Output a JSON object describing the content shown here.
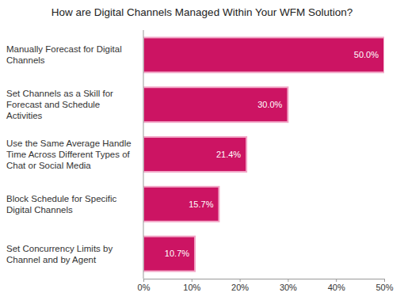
{
  "chart_data": {
    "type": "bar",
    "orientation": "horizontal",
    "title": "How are Digital Channels Managed Within Your WFM Solution?",
    "categories": [
      "Manually Forecast for Digital Channels",
      "Set Channels as a Skill for Forecast and Schedule Activities",
      "Use the Same Average Handle Time Across Different Types of Chat or Social Media",
      "Block Schedule for Specific Digital Channels",
      "Set Concurrency Limits by Channel and by Agent"
    ],
    "values": [
      50.0,
      30.0,
      21.4,
      15.7,
      10.7
    ],
    "value_labels": [
      "50.0%",
      "30.0%",
      "21.4%",
      "15.7%",
      "10.7%"
    ],
    "color": "#cc1463",
    "xlim": [
      0,
      50
    ],
    "xticks": [
      {
        "value": 0,
        "label": "0%"
      },
      {
        "value": 10,
        "label": "10%"
      },
      {
        "value": 20,
        "label": "20%"
      },
      {
        "value": 30,
        "label": "30%"
      },
      {
        "value": 40,
        "label": "40%"
      },
      {
        "value": 50,
        "label": "50%"
      }
    ],
    "grid": false,
    "data_labels": true
  }
}
